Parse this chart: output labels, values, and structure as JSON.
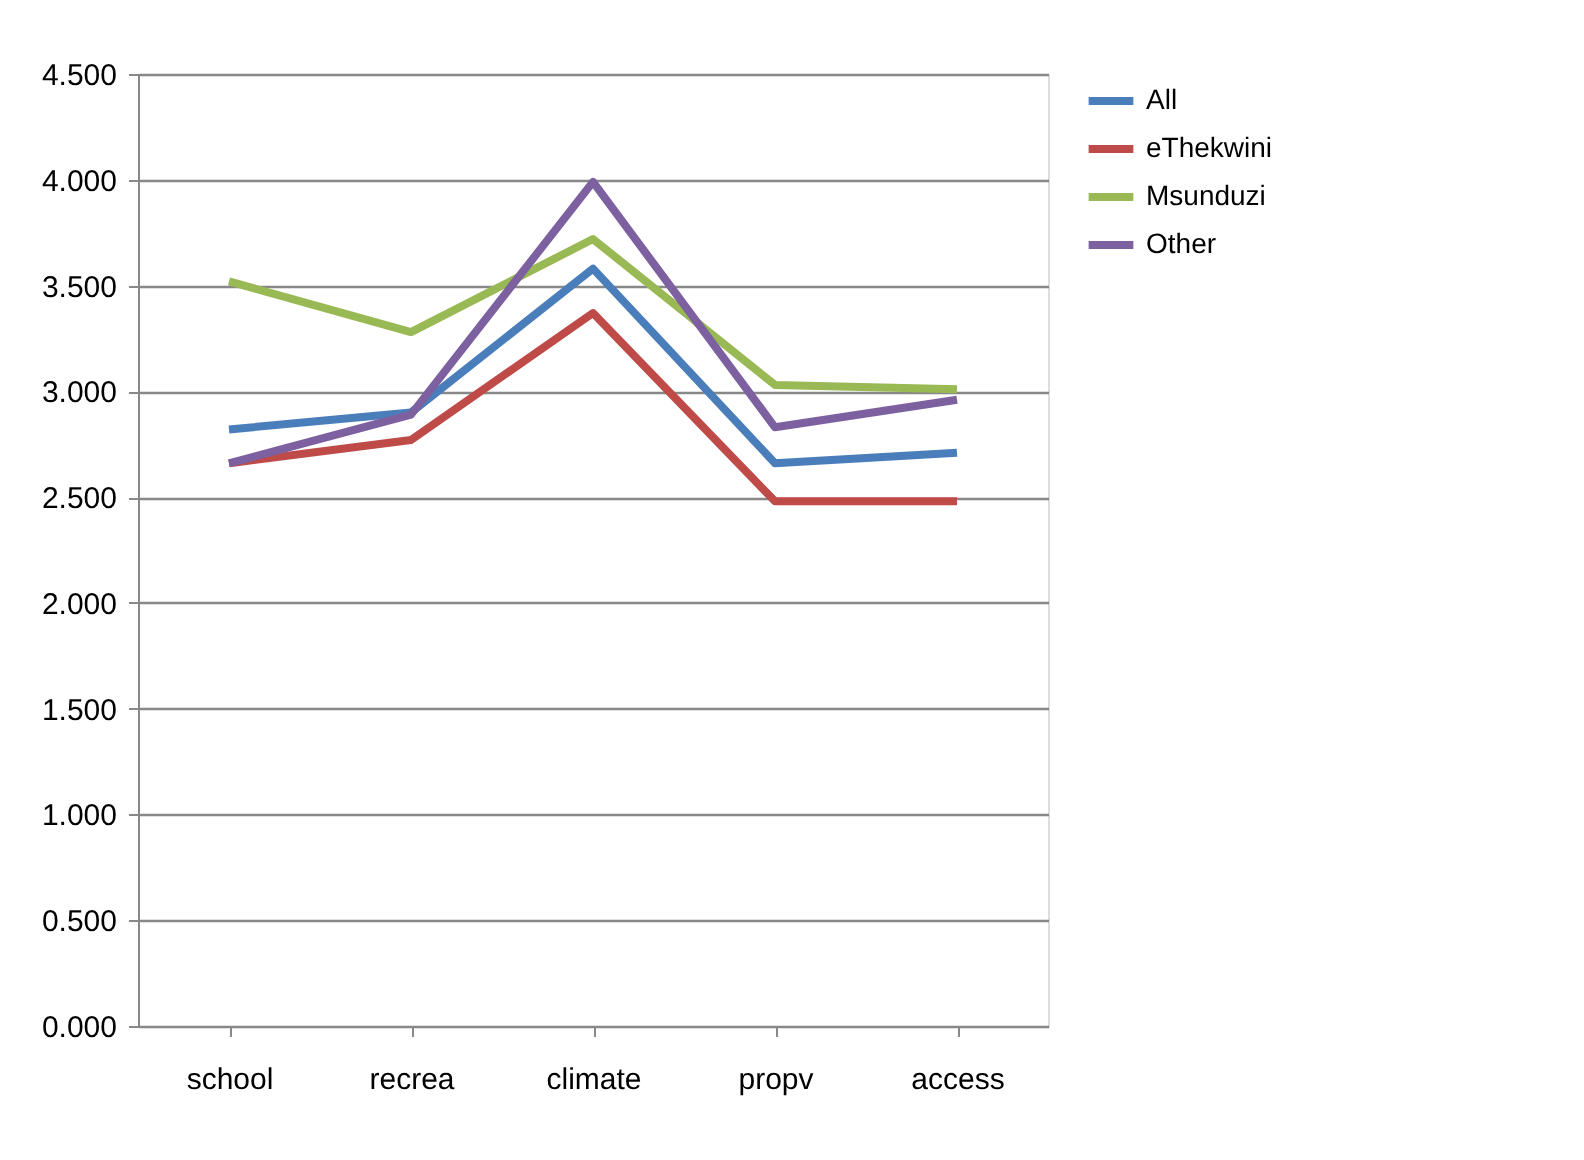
{
  "chart_data": {
    "type": "line",
    "categories": [
      "school",
      "recrea",
      "climate",
      "propv",
      "access"
    ],
    "series": [
      {
        "name": "All",
        "color": "#4a7ebb",
        "values": [
          2.82,
          2.9,
          3.58,
          2.66,
          2.71
        ]
      },
      {
        "name": "eThekwini",
        "color": "#be4b48",
        "values": [
          2.66,
          2.77,
          3.37,
          2.48,
          2.48
        ]
      },
      {
        "name": "Msunduzi",
        "color": "#98b954",
        "values": [
          3.52,
          3.28,
          3.72,
          3.03,
          3.01
        ]
      },
      {
        "name": "Other",
        "color": "#7d60a0",
        "values": [
          2.66,
          2.89,
          3.99,
          2.83,
          2.96
        ]
      }
    ],
    "ylim": [
      0,
      4.5
    ],
    "yticks": [
      {
        "value": 0,
        "label": "0.000"
      },
      {
        "value": 0.5,
        "label": "0.500"
      },
      {
        "value": 1,
        "label": "1.000"
      },
      {
        "value": 1.5,
        "label": "1.500"
      },
      {
        "value": 2,
        "label": "2.000"
      },
      {
        "value": 2.5,
        "label": "2.500"
      },
      {
        "value": 3,
        "label": "3.000"
      },
      {
        "value": 3.5,
        "label": "3.500"
      },
      {
        "value": 4,
        "label": "4.000"
      },
      {
        "value": 4.5,
        "label": "4.500"
      }
    ],
    "grid": "y",
    "legend": "right",
    "marker": "none",
    "line_style": "solid"
  }
}
